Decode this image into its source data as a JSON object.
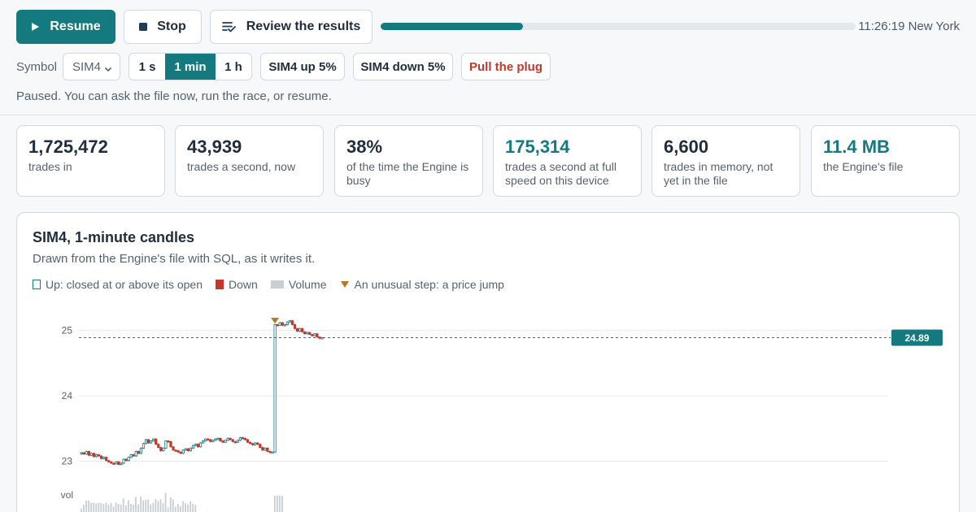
{
  "toolbar": {
    "resume_label": "Resume",
    "stop_label": "Stop",
    "review_label": "Review the results",
    "progress_fraction": 0.3,
    "clock": "11:26:19 New York"
  },
  "controls": {
    "symbol_label": "Symbol",
    "symbol_value": "SIM4",
    "intervals": [
      "1 s",
      "1 min",
      "1 h"
    ],
    "selected_interval": "1 min",
    "up_label": "SIM4 up 5%",
    "down_label": "SIM4 down 5%",
    "pull_label": "Pull the plug"
  },
  "status": "Paused. You can ask the file now, run the race, or resume.",
  "stats": [
    {
      "value": "1,725,472",
      "label": "trades in",
      "accent": false
    },
    {
      "value": "43,939",
      "label": "trades a second, now",
      "accent": false
    },
    {
      "value": "38%",
      "label": "of the time the Engine is busy",
      "accent": false
    },
    {
      "value": "175,314",
      "label": "trades a second at full speed on this device",
      "accent": true
    },
    {
      "value": "6,600",
      "label": "trades in memory, not yet in the file",
      "accent": false
    },
    {
      "value": "11.4 MB",
      "label": "the Engine's file",
      "accent": true
    }
  ],
  "panel": {
    "title": "SIM4, 1-minute candles",
    "subtitle": "Drawn from the Engine's file with SQL, as it writes it.",
    "legend": {
      "up": "Up: closed at or above its open",
      "down": "Down",
      "volume": "Volume",
      "jump": "An unusual step: a price jump"
    }
  },
  "colors": {
    "accent": "#157a80",
    "up": "#157a80",
    "down": "#c0392b",
    "volume": "#c8ced4",
    "jump": "#b7791f"
  },
  "chart_data": {
    "type": "candlestick",
    "y_ticks": [
      "25",
      "24",
      "23"
    ],
    "ylim": [
      22.9,
      25.25
    ],
    "last_price": 24.89,
    "last_price_label": "24.89",
    "volume_label": "vol",
    "jump_index": 78,
    "closes": [
      23.13,
      23.11,
      23.15,
      23.09,
      23.12,
      23.07,
      23.1,
      23.08,
      23.04,
      23.06,
      23.01,
      22.99,
      22.97,
      22.96,
      22.99,
      22.95,
      22.97,
      23.03,
      23.01,
      23.06,
      23.1,
      23.08,
      23.15,
      23.12,
      23.2,
      23.27,
      23.33,
      23.28,
      23.31,
      23.34,
      23.26,
      23.21,
      23.16,
      23.2,
      23.31,
      23.3,
      23.22,
      23.17,
      23.16,
      23.14,
      23.12,
      23.17,
      23.19,
      23.16,
      23.2,
      23.24,
      23.26,
      23.22,
      23.28,
      23.31,
      23.34,
      23.33,
      23.3,
      23.32,
      23.34,
      23.35,
      23.31,
      23.29,
      23.32,
      23.35,
      23.33,
      23.3,
      23.29,
      23.32,
      23.36,
      23.35,
      23.33,
      23.29,
      23.27,
      23.25,
      23.28,
      23.26,
      23.21,
      23.17,
      23.2,
      23.15,
      23.14,
      23.14,
      25.09,
      25.08,
      25.12,
      25.08,
      25.09,
      25.13,
      25.15,
      25.09,
      25.03,
      24.99,
      25.03,
      24.98,
      24.95,
      24.97,
      24.94,
      24.92,
      24.95,
      24.9,
      24.88,
      24.89
    ]
  }
}
